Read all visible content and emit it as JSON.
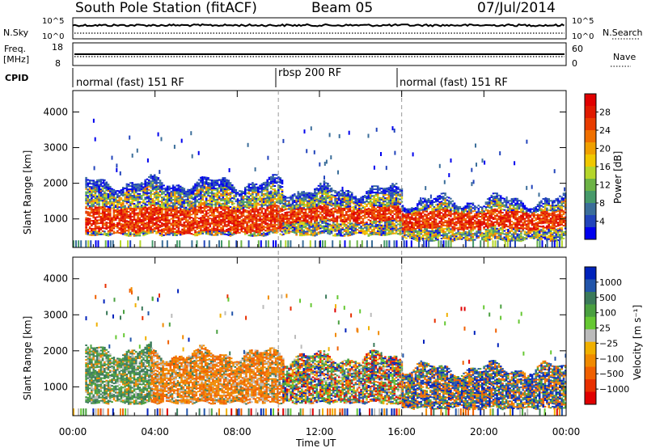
{
  "header": {
    "title": "South Pole Station (fitACF)",
    "beam": "Beam 05",
    "date": "07/Jul/2014"
  },
  "noise_panel": {
    "left_label": "N.Sky",
    "left_ticks": [
      "10^5",
      "10^0"
    ],
    "right_ticks": [
      "10^5",
      "10^0"
    ],
    "right_label": "N.Search"
  },
  "freq_panel": {
    "left_label_line1": "Freq.",
    "left_label_line2": "[MHz]",
    "left_ticks": [
      "18",
      "8"
    ],
    "right_ticks": [
      "60",
      "0"
    ],
    "right_label": "Nave"
  },
  "cpid": {
    "label": "CPID",
    "segments": [
      {
        "name": "normal (fast) 151 RF",
        "start_hour": 0,
        "end_hour": 10
      },
      {
        "name": "rbsp 200 RF",
        "start_hour": 10,
        "end_hour": 16
      },
      {
        "name": "normal (fast) 151 RF",
        "start_hour": 16,
        "end_hour": 24
      }
    ]
  },
  "chart_data": [
    {
      "type": "heatmap",
      "parameter": "power",
      "ylabel": "Slant Range [km]",
      "yticks": [
        "1000",
        "2000",
        "3000",
        "4000"
      ],
      "ylim": [
        200,
        4600
      ],
      "xlim": [
        0,
        24
      ],
      "colorbar": {
        "label": "Power [dB]",
        "ticks": [
          "4",
          "8",
          "12",
          "16",
          "20",
          "24",
          "28"
        ],
        "colors": [
          "#0000ee",
          "#2244bb",
          "#3b6e9a",
          "#479a6a",
          "#6db346",
          "#b5d62b",
          "#f0c800",
          "#f0a000",
          "#f07000",
          "#e83c00",
          "#e01a00",
          "#e00000"
        ]
      },
      "echo_bands": [
        {
          "start_hour": 0.6,
          "end_hour": 10.2,
          "low_km": 500,
          "high_km": 2000,
          "strong_low_km": 600,
          "strong_high_km": 1300
        },
        {
          "start_hour": 10.2,
          "end_hour": 16.0,
          "low_km": 500,
          "high_km": 1800,
          "strong_low_km": 900,
          "strong_high_km": 1300
        },
        {
          "start_hour": 16.0,
          "end_hour": 24.0,
          "low_km": 350,
          "high_km": 1500,
          "strong_low_km": 700,
          "strong_high_km": 1200
        }
      ]
    },
    {
      "type": "heatmap",
      "parameter": "velocity",
      "ylabel": "Slant Range [km]",
      "yticks": [
        "1000",
        "2000",
        "3000",
        "4000"
      ],
      "ylim": [
        200,
        4600
      ],
      "xlim": [
        0,
        24
      ],
      "xticks": [
        "00:00",
        "04:00",
        "08:00",
        "12:00",
        "16:00",
        "20:00",
        "00:00"
      ],
      "xlabel": "Time UT",
      "colorbar": {
        "label": "Velocity [m s⁻¹]",
        "ticks": [
          "1000",
          "500",
          "100",
          "25",
          "−25",
          "−100",
          "−500",
          "−1000"
        ],
        "colors": [
          "#0022bb",
          "#2255aa",
          "#3b7a5a",
          "#4aa040",
          "#66c833",
          "#bbbbbb",
          "#f0b000",
          "#f08a00",
          "#f06000",
          "#e83000",
          "#e00000"
        ]
      },
      "echo_bands": [
        {
          "start_hour": 0.6,
          "end_hour": 3.8,
          "low_km": 500,
          "high_km": 2000,
          "dominant": "green"
        },
        {
          "start_hour": 3.8,
          "end_hour": 10.2,
          "low_km": 500,
          "high_km": 1900,
          "dominant": "orange"
        },
        {
          "start_hour": 10.2,
          "end_hour": 16.0,
          "low_km": 500,
          "high_km": 1800,
          "dominant": "mixed"
        },
        {
          "start_hour": 16.0,
          "end_hour": 24.0,
          "low_km": 350,
          "high_km": 1500,
          "dominant": "blue-orange"
        }
      ]
    }
  ]
}
